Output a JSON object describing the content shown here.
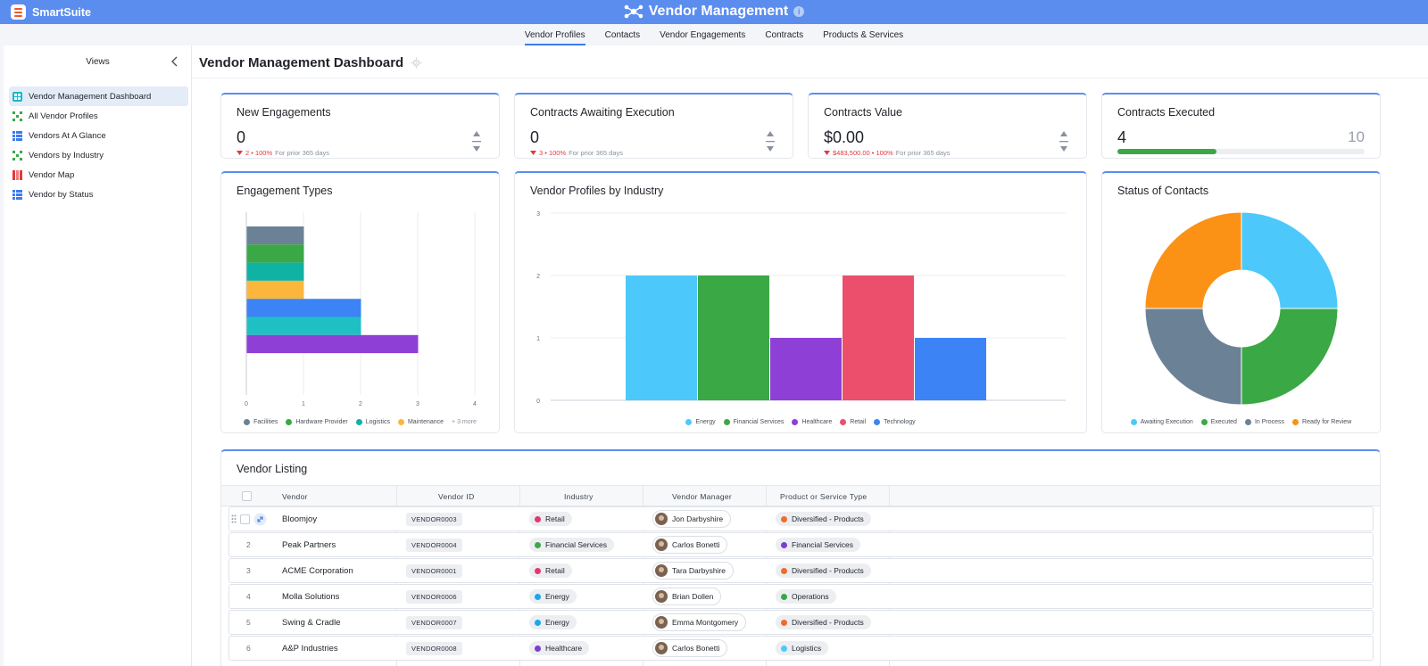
{
  "brand": {
    "name": "SmartSuite"
  },
  "app": {
    "title": "Vendor Management",
    "info": "i"
  },
  "tabs": [
    "Vendor Profiles",
    "Contacts",
    "Vendor Engagements",
    "Contracts",
    "Products & Services"
  ],
  "sidebar": {
    "header": "Views",
    "items": [
      {
        "label": "Vendor Management Dashboard",
        "icon": "dashboard-icon",
        "color": "#17b8c9"
      },
      {
        "label": "All Vendor Profiles",
        "icon": "grid-icon",
        "color": "#3aa845"
      },
      {
        "label": "Vendors At A Glance",
        "icon": "grid-icon",
        "color": "#3c7bf0"
      },
      {
        "label": "Vendors by Industry",
        "icon": "grid-icon",
        "color": "#3aa845"
      },
      {
        "label": "Vendor Map",
        "icon": "map-icon",
        "color": "#e2383f"
      },
      {
        "label": "Vendor by Status",
        "icon": "grid-icon",
        "color": "#3c7bf0"
      }
    ]
  },
  "page": {
    "title": "Vendor Management Dashboard"
  },
  "kpis": [
    {
      "title": "New Engagements",
      "value": "0",
      "delta": "2 • 100%",
      "period": "For prior 365 days"
    },
    {
      "title": "Contracts Awaiting Execution",
      "value": "0",
      "delta": "3 • 100%",
      "period": "For prior 365 days"
    },
    {
      "title": "Contracts Value",
      "value": "$0.00",
      "delta": "$483,500.00 • 100%",
      "period": "For prior 365 days"
    },
    {
      "title": "Contracts Executed",
      "value": "4",
      "max": "10",
      "progress": 0.4
    }
  ],
  "charts": {
    "engagement_title": "Engagement Types",
    "industry_title": "Vendor Profiles by Industry",
    "status_title": "Status of Contacts",
    "engagement_more": "+ 3 more"
  },
  "chart_data": [
    {
      "type": "bar",
      "orientation": "horizontal",
      "title": "Engagement Types",
      "xlim": [
        0,
        4
      ],
      "xticks": [
        "0",
        "1",
        "2",
        "3",
        "4"
      ],
      "grid": true,
      "legend_position": "bottom",
      "bars": [
        {
          "name": "Facilities",
          "value": 1,
          "color": "#6b8196"
        },
        {
          "name": "Hardware Provider",
          "value": 1,
          "color": "#3aa845"
        },
        {
          "name": "Logistics",
          "value": 1,
          "color": "#10b2a3"
        },
        {
          "name": "Maintenance",
          "value": 1,
          "color": "#fbb73c"
        },
        {
          "name": "",
          "value": 2,
          "color": "#3c84f5"
        },
        {
          "name": "",
          "value": 2,
          "color": "#1fc0c4"
        },
        {
          "name": "",
          "value": 3,
          "color": "#8e3fd6"
        }
      ],
      "legend": [
        "Facilities",
        "Hardware Provider",
        "Logistics",
        "Maintenance"
      ]
    },
    {
      "type": "bar",
      "title": "Vendor Profiles by Industry",
      "ylim": [
        0,
        3
      ],
      "yticks": [
        "0",
        "1",
        "2",
        "3"
      ],
      "grid": true,
      "legend_position": "bottom",
      "categories": [
        "Energy",
        "Financial Services",
        "Healthcare",
        "Retail",
        "Technology"
      ],
      "values": [
        2,
        2,
        1,
        2,
        1
      ],
      "colors": [
        "#4cc9fa",
        "#3aa845",
        "#8e3fd6",
        "#ec4f6c",
        "#3c84f5"
      ]
    },
    {
      "type": "pie",
      "subtype": "donut",
      "title": "Status of Contacts",
      "legend_position": "bottom",
      "categories": [
        "Awaiting Execution",
        "Executed",
        "In Process",
        "Ready for Review"
      ],
      "values": [
        1,
        1,
        1,
        1
      ],
      "colors": [
        "#4cc9fa",
        "#3aa845",
        "#6b8196",
        "#fb9216"
      ]
    }
  ],
  "table": {
    "title": "Vendor Listing",
    "columns": [
      "Vendor",
      "Vendor ID",
      "Industry",
      "Vendor Manager",
      "Product or Service Type"
    ],
    "rows": [
      {
        "num": "1",
        "vendor": "Bloomjoy",
        "id": "VENDOR0003",
        "industry": "Retail",
        "industry_color": "#e2386f",
        "manager": "Jon Darbyshire",
        "product": "Diversified - Products",
        "product_color": "#f26b2a"
      },
      {
        "num": "2",
        "vendor": "Peak Partners",
        "id": "VENDOR0004",
        "industry": "Financial Services",
        "industry_color": "#3aa845",
        "manager": "Carlos Bonetti",
        "product": "Financial Services",
        "product_color": "#7b3fd0"
      },
      {
        "num": "3",
        "vendor": "ACME Corporation",
        "id": "VENDOR0001",
        "industry": "Retail",
        "industry_color": "#e2386f",
        "manager": "Tara Darbyshire",
        "product": "Diversified - Products",
        "product_color": "#f26b2a"
      },
      {
        "num": "4",
        "vendor": "Molla Solutions",
        "id": "VENDOR0006",
        "industry": "Energy",
        "industry_color": "#1aa7f0",
        "manager": "Brian Dollen",
        "product": "Operations",
        "product_color": "#3aa845"
      },
      {
        "num": "5",
        "vendor": "Swing & Cradle",
        "id": "VENDOR0007",
        "industry": "Energy",
        "industry_color": "#1aa7f0",
        "manager": "Emma Montgomery",
        "product": "Diversified - Products",
        "product_color": "#f26b2a"
      },
      {
        "num": "6",
        "vendor": "A&P Industries",
        "id": "VENDOR0008",
        "industry": "Healthcare",
        "industry_color": "#7b3fd0",
        "manager": "Carlos Bonetti",
        "product": "Logistics",
        "product_color": "#4cc9fa"
      }
    ]
  }
}
